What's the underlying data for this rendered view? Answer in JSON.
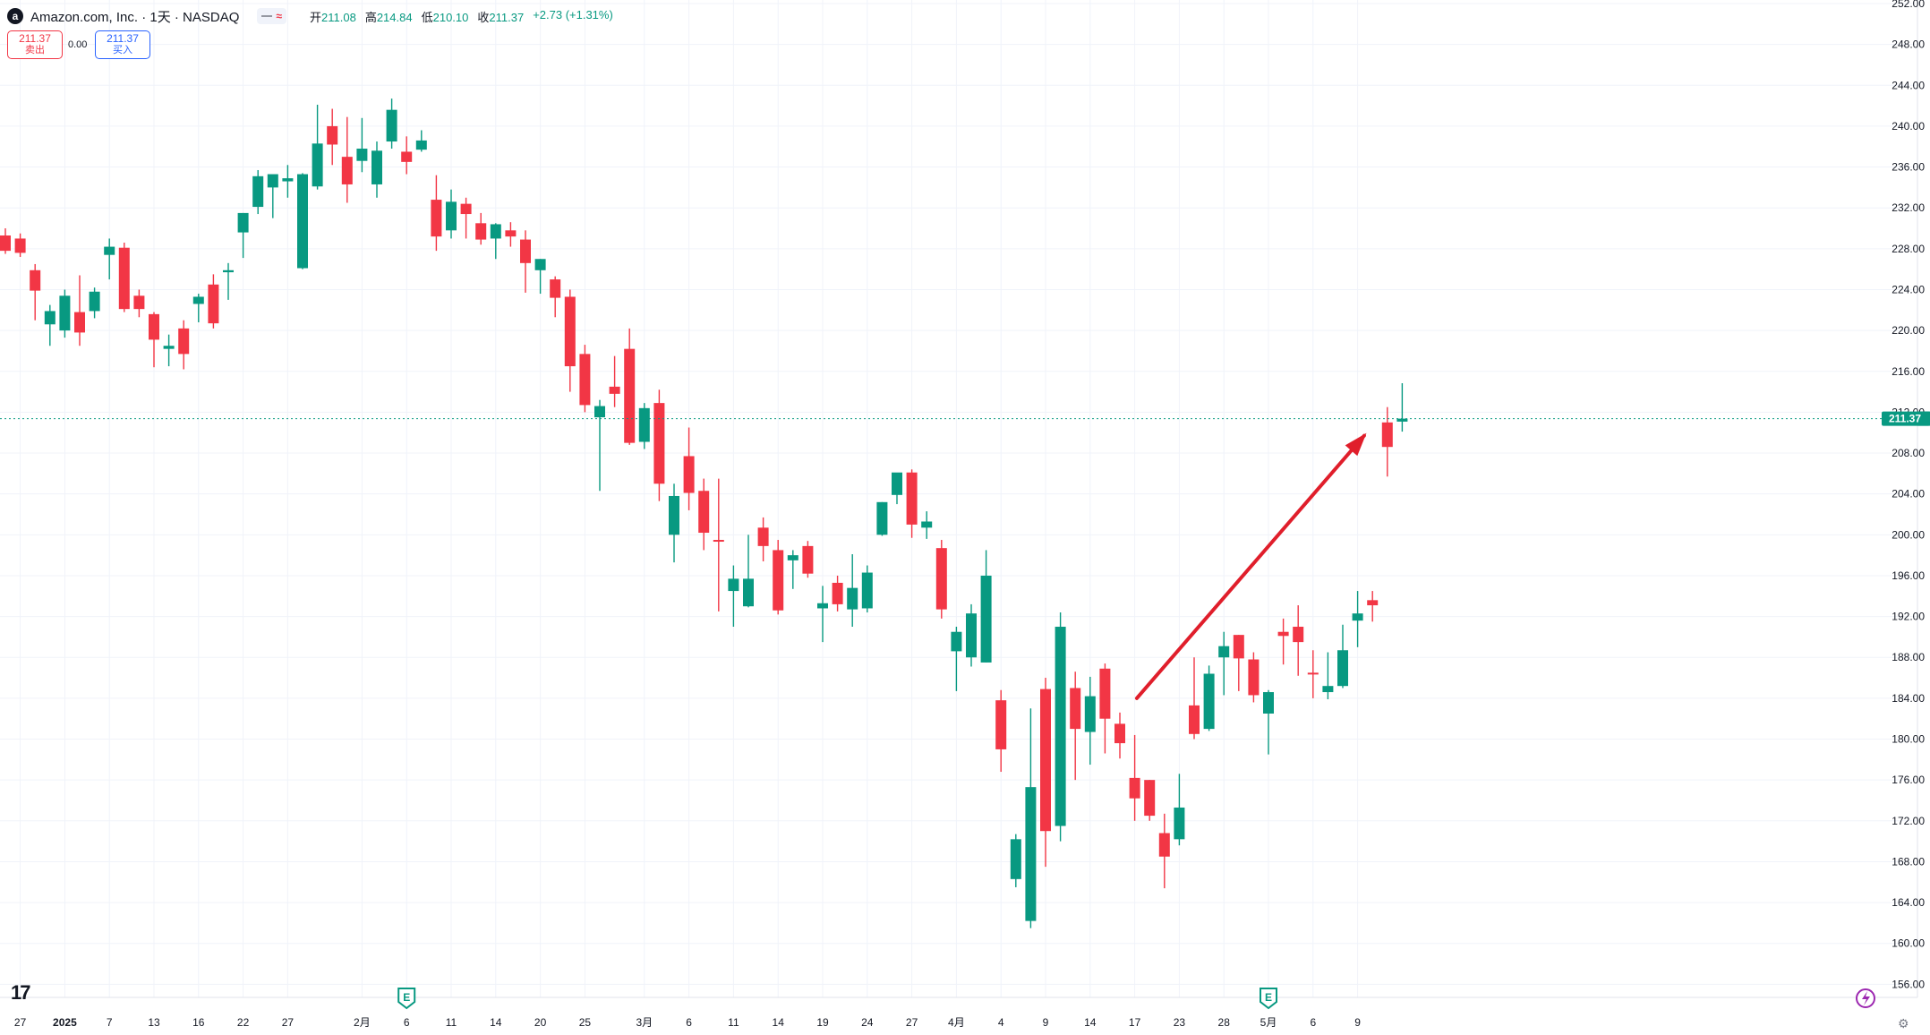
{
  "header": {
    "logo_letter": "a",
    "title": "Amazon.com, Inc. · 1天 · NASDAQ",
    "chip_icon": "≈",
    "ohlc": [
      {
        "label": "开",
        "value": "211.08"
      },
      {
        "label": "高",
        "value": "214.84"
      },
      {
        "label": "低",
        "value": "210.10"
      },
      {
        "label": "收",
        "value": "211.37"
      }
    ],
    "change": "+2.73 (+1.31%)"
  },
  "trade": {
    "sell_price": "211.37",
    "sell_label": "卖出",
    "spread": "0.00",
    "buy_price": "211.37",
    "buy_label": "买入"
  },
  "footer": {
    "tv_logo": "17",
    "settings_icon": "⚙"
  },
  "colors": {
    "up": "#089981",
    "down": "#f23645",
    "arrow": "#e01e2b",
    "grid": "#f0f3fa",
    "axis_text": "#131722"
  },
  "icons": [
    "earnings-icon",
    "lightning-icon",
    "settings-icon",
    "tradingview-logo"
  ],
  "chart_data": {
    "type": "candlestick",
    "title": "Amazon.com, Inc. · 1天 · NASDAQ",
    "y_range": [
      154,
      252
    ],
    "y_ticks": [
      156,
      160,
      164,
      168,
      172,
      176,
      180,
      184,
      188,
      192,
      196,
      200,
      204,
      208,
      212,
      216,
      220,
      224,
      228,
      232,
      236,
      240,
      244,
      248,
      252
    ],
    "x_ticks": [
      {
        "label": "27",
        "i": 1
      },
      {
        "label": "2025",
        "i": 4
      },
      {
        "label": "7",
        "i": 7
      },
      {
        "label": "13",
        "i": 10
      },
      {
        "label": "16",
        "i": 13
      },
      {
        "label": "22",
        "i": 16
      },
      {
        "label": "27",
        "i": 19
      },
      {
        "label": "2月",
        "i": 24
      },
      {
        "label": "6",
        "i": 27
      },
      {
        "label": "11",
        "i": 30
      },
      {
        "label": "14",
        "i": 33
      },
      {
        "label": "20",
        "i": 36
      },
      {
        "label": "25",
        "i": 39
      },
      {
        "label": "3月",
        "i": 43
      },
      {
        "label": "6",
        "i": 46
      },
      {
        "label": "11",
        "i": 49
      },
      {
        "label": "14",
        "i": 52
      },
      {
        "label": "19",
        "i": 55
      },
      {
        "label": "24",
        "i": 58
      },
      {
        "label": "27",
        "i": 61
      },
      {
        "label": "4月",
        "i": 64
      },
      {
        "label": "4",
        "i": 67
      },
      {
        "label": "9",
        "i": 70
      },
      {
        "label": "14",
        "i": 73
      },
      {
        "label": "17",
        "i": 76
      },
      {
        "label": "23",
        "i": 79
      },
      {
        "label": "28",
        "i": 82
      },
      {
        "label": "5月",
        "i": 85
      },
      {
        "label": "6",
        "i": 88
      },
      {
        "label": "9",
        "i": 91
      }
    ],
    "earnings_markers": [
      27,
      85
    ],
    "last_price": 211.37,
    "last_price_label": "211.37",
    "trend_arrow": {
      "from": {
        "i": 76.5,
        "y": 184
      },
      "to": {
        "i": 91.8,
        "y": 209.7
      }
    },
    "candles": [
      [
        229.3,
        230.0,
        227.5,
        227.8
      ],
      [
        229.0,
        229.5,
        227.2,
        227.6
      ],
      [
        225.9,
        226.5,
        221.0,
        223.9
      ],
      [
        220.6,
        222.5,
        218.5,
        221.9
      ],
      [
        220.0,
        224.0,
        219.3,
        223.4
      ],
      [
        221.8,
        225.4,
        218.5,
        219.8
      ],
      [
        221.9,
        224.2,
        221.2,
        223.8
      ],
      [
        227.4,
        229.0,
        225.0,
        228.2
      ],
      [
        228.1,
        228.6,
        221.8,
        222.1
      ],
      [
        223.4,
        224.0,
        221.3,
        222.1
      ],
      [
        221.6,
        221.8,
        216.4,
        219.1
      ],
      [
        218.2,
        219.6,
        216.5,
        218.5
      ],
      [
        220.2,
        221.0,
        216.2,
        217.7
      ],
      [
        222.6,
        223.6,
        220.8,
        223.3
      ],
      [
        224.5,
        225.5,
        220.2,
        220.7
      ],
      [
        225.7,
        226.6,
        223.0,
        225.9
      ],
      [
        229.6,
        231.5,
        227.1,
        231.5
      ],
      [
        232.1,
        235.7,
        231.4,
        235.1
      ],
      [
        234.0,
        235.0,
        231.0,
        235.3
      ],
      [
        234.6,
        236.2,
        233.0,
        234.9
      ],
      [
        226.1,
        235.4,
        226.0,
        235.3
      ],
      [
        234.1,
        242.1,
        233.8,
        238.3
      ],
      [
        240.0,
        241.7,
        236.2,
        238.2
      ],
      [
        237.0,
        240.9,
        232.5,
        234.3
      ],
      [
        236.6,
        240.8,
        235.5,
        237.8
      ],
      [
        234.3,
        238.5,
        233.0,
        237.6
      ],
      [
        238.5,
        242.7,
        237.8,
        241.6
      ],
      [
        237.5,
        239.0,
        235.3,
        236.5
      ],
      [
        237.7,
        239.6,
        237.5,
        238.6
      ],
      [
        232.8,
        235.2,
        227.8,
        229.2
      ],
      [
        229.8,
        233.8,
        229.0,
        232.6
      ],
      [
        232.4,
        233.0,
        229.0,
        231.4
      ],
      [
        230.5,
        231.5,
        228.4,
        228.9
      ],
      [
        229.0,
        230.5,
        227.0,
        230.4
      ],
      [
        229.8,
        230.6,
        228.2,
        229.2
      ],
      [
        228.9,
        229.8,
        223.7,
        226.6
      ],
      [
        225.9,
        227.0,
        223.6,
        227.0
      ],
      [
        225.0,
        225.3,
        221.3,
        223.2
      ],
      [
        223.3,
        224.0,
        214.0,
        216.5
      ],
      [
        217.7,
        218.6,
        212.0,
        212.7
      ],
      [
        211.5,
        213.2,
        204.3,
        212.6
      ],
      [
        214.5,
        217.5,
        212.5,
        213.8
      ],
      [
        218.2,
        220.2,
        208.8,
        209.0
      ],
      [
        209.1,
        212.9,
        208.4,
        212.4
      ],
      [
        212.9,
        214.2,
        203.3,
        205.0
      ],
      [
        200.0,
        205.0,
        197.3,
        203.8
      ],
      [
        207.7,
        210.5,
        202.4,
        204.1
      ],
      [
        204.3,
        205.5,
        198.5,
        200.2
      ],
      [
        199.5,
        205.5,
        192.5,
        199.4
      ],
      [
        194.5,
        197.0,
        191.0,
        195.7
      ],
      [
        193.0,
        200.0,
        192.9,
        195.7
      ],
      [
        200.7,
        201.7,
        197.4,
        198.9
      ],
      [
        198.5,
        199.5,
        192.2,
        192.6
      ],
      [
        197.5,
        198.5,
        194.7,
        198.0
      ],
      [
        198.9,
        199.4,
        195.8,
        196.2
      ],
      [
        192.8,
        195.0,
        189.5,
        193.3
      ],
      [
        195.3,
        196.0,
        192.5,
        193.2
      ],
      [
        192.7,
        198.1,
        191.0,
        194.8
      ],
      [
        192.8,
        197.0,
        192.4,
        196.3
      ],
      [
        200.0,
        203.2,
        199.9,
        203.2
      ],
      [
        203.9,
        206.0,
        203.0,
        206.1
      ],
      [
        206.1,
        206.4,
        199.7,
        201.0
      ],
      [
        200.7,
        202.3,
        199.6,
        201.3
      ],
      [
        198.7,
        199.5,
        191.8,
        192.7
      ],
      [
        188.6,
        191.0,
        184.7,
        190.5
      ],
      [
        188.0,
        193.2,
        187.1,
        192.3
      ],
      [
        187.5,
        198.5,
        187.5,
        196.0
      ],
      [
        183.8,
        184.8,
        176.8,
        179.0
      ],
      [
        166.3,
        170.7,
        165.5,
        170.2
      ],
      [
        162.2,
        183.0,
        161.5,
        175.3
      ],
      [
        184.9,
        186.0,
        167.5,
        171.0
      ],
      [
        171.5,
        192.4,
        170.0,
        191.0
      ],
      [
        185.0,
        186.6,
        176.0,
        181.0
      ],
      [
        180.7,
        186.1,
        177.5,
        184.2
      ],
      [
        186.9,
        187.4,
        178.6,
        182.0
      ],
      [
        181.5,
        182.6,
        178.1,
        179.6
      ],
      [
        176.2,
        180.4,
        172.0,
        174.2
      ],
      [
        176.0,
        176.0,
        172.0,
        172.5
      ],
      [
        170.8,
        172.7,
        165.4,
        168.5
      ],
      [
        170.2,
        176.6,
        169.6,
        173.3
      ],
      [
        183.3,
        188.0,
        180.0,
        180.5
      ],
      [
        181.0,
        187.2,
        180.8,
        186.4
      ],
      [
        188.0,
        190.5,
        184.3,
        189.1
      ],
      [
        190.2,
        190.2,
        184.7,
        187.9
      ],
      [
        187.8,
        188.5,
        183.6,
        184.3
      ],
      [
        182.5,
        184.8,
        178.5,
        184.6
      ],
      [
        190.5,
        191.8,
        187.3,
        190.1
      ],
      [
        191.0,
        193.1,
        186.2,
        189.5
      ],
      [
        186.5,
        188.7,
        184.0,
        186.4
      ],
      [
        184.6,
        188.5,
        183.9,
        185.2
      ],
      [
        185.2,
        191.2,
        185.0,
        188.7
      ],
      [
        191.6,
        194.5,
        189.0,
        192.3
      ],
      [
        193.6,
        194.5,
        191.5,
        193.1
      ],
      [
        211.0,
        212.5,
        205.7,
        208.6
      ],
      [
        211.08,
        214.84,
        210.1,
        211.37
      ]
    ]
  }
}
